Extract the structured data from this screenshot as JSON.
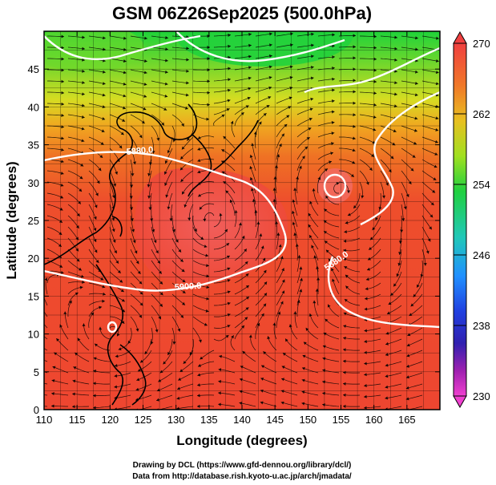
{
  "title": "GSM 06Z26Sep2025 (500.0hPa)",
  "x_axis": {
    "label": "Longitude (degrees)",
    "ticks": [
      "110",
      "115",
      "120",
      "125",
      "130",
      "135",
      "140",
      "145",
      "150",
      "155",
      "160",
      "165"
    ]
  },
  "y_axis": {
    "label": "Latitude  (degrees)",
    "ticks": [
      "0",
      "5",
      "10",
      "15",
      "20",
      "25",
      "30",
      "35",
      "40",
      "45"
    ]
  },
  "colorbar": {
    "ticks": [
      "270",
      "262",
      "254",
      "246",
      "238",
      "230"
    ],
    "min": 230,
    "max": 270
  },
  "contour_labels": [
    "5880.0",
    "5900.0",
    "5880.0"
  ],
  "credits": {
    "line1": "Drawing by DCL (https://www.gfd-dennou.org/library/dcl/)",
    "line2": "Data from http://database.rish.kyoto-u.ac.jp/arch/jmadata/"
  },
  "colors": {
    "warm_core": "#f05050",
    "warm": "#ee4a32",
    "orange": "#f08a20",
    "yellow": "#d8d820",
    "green": "#2fd02f",
    "white_contour": "#ffffff"
  }
}
